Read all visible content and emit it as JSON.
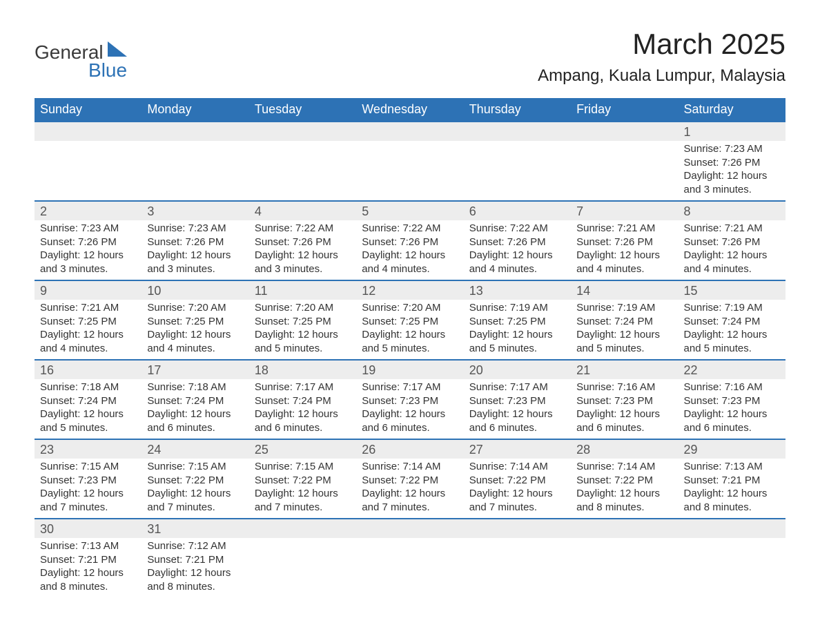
{
  "logo": {
    "line1": "General",
    "line2": "Blue",
    "tri_color": "#2d72b5"
  },
  "title": "March 2025",
  "location": "Ampang, Kuala Lumpur, Malaysia",
  "colors": {
    "header_bg": "#2d72b5",
    "header_fg": "#ffffff",
    "row_stripe": "#ededed",
    "border": "#2d72b5",
    "text": "#333333"
  },
  "day_headers": [
    "Sunday",
    "Monday",
    "Tuesday",
    "Wednesday",
    "Thursday",
    "Friday",
    "Saturday"
  ],
  "weeks": [
    [
      null,
      null,
      null,
      null,
      null,
      null,
      {
        "d": "1",
        "sunrise": "7:23 AM",
        "sunset": "7:26 PM",
        "daylight": "12 hours and 3 minutes."
      }
    ],
    [
      {
        "d": "2",
        "sunrise": "7:23 AM",
        "sunset": "7:26 PM",
        "daylight": "12 hours and 3 minutes."
      },
      {
        "d": "3",
        "sunrise": "7:23 AM",
        "sunset": "7:26 PM",
        "daylight": "12 hours and 3 minutes."
      },
      {
        "d": "4",
        "sunrise": "7:22 AM",
        "sunset": "7:26 PM",
        "daylight": "12 hours and 3 minutes."
      },
      {
        "d": "5",
        "sunrise": "7:22 AM",
        "sunset": "7:26 PM",
        "daylight": "12 hours and 4 minutes."
      },
      {
        "d": "6",
        "sunrise": "7:22 AM",
        "sunset": "7:26 PM",
        "daylight": "12 hours and 4 minutes."
      },
      {
        "d": "7",
        "sunrise": "7:21 AM",
        "sunset": "7:26 PM",
        "daylight": "12 hours and 4 minutes."
      },
      {
        "d": "8",
        "sunrise": "7:21 AM",
        "sunset": "7:26 PM",
        "daylight": "12 hours and 4 minutes."
      }
    ],
    [
      {
        "d": "9",
        "sunrise": "7:21 AM",
        "sunset": "7:25 PM",
        "daylight": "12 hours and 4 minutes."
      },
      {
        "d": "10",
        "sunrise": "7:20 AM",
        "sunset": "7:25 PM",
        "daylight": "12 hours and 4 minutes."
      },
      {
        "d": "11",
        "sunrise": "7:20 AM",
        "sunset": "7:25 PM",
        "daylight": "12 hours and 5 minutes."
      },
      {
        "d": "12",
        "sunrise": "7:20 AM",
        "sunset": "7:25 PM",
        "daylight": "12 hours and 5 minutes."
      },
      {
        "d": "13",
        "sunrise": "7:19 AM",
        "sunset": "7:25 PM",
        "daylight": "12 hours and 5 minutes."
      },
      {
        "d": "14",
        "sunrise": "7:19 AM",
        "sunset": "7:24 PM",
        "daylight": "12 hours and 5 minutes."
      },
      {
        "d": "15",
        "sunrise": "7:19 AM",
        "sunset": "7:24 PM",
        "daylight": "12 hours and 5 minutes."
      }
    ],
    [
      {
        "d": "16",
        "sunrise": "7:18 AM",
        "sunset": "7:24 PM",
        "daylight": "12 hours and 5 minutes."
      },
      {
        "d": "17",
        "sunrise": "7:18 AM",
        "sunset": "7:24 PM",
        "daylight": "12 hours and 6 minutes."
      },
      {
        "d": "18",
        "sunrise": "7:17 AM",
        "sunset": "7:24 PM",
        "daylight": "12 hours and 6 minutes."
      },
      {
        "d": "19",
        "sunrise": "7:17 AM",
        "sunset": "7:23 PM",
        "daylight": "12 hours and 6 minutes."
      },
      {
        "d": "20",
        "sunrise": "7:17 AM",
        "sunset": "7:23 PM",
        "daylight": "12 hours and 6 minutes."
      },
      {
        "d": "21",
        "sunrise": "7:16 AM",
        "sunset": "7:23 PM",
        "daylight": "12 hours and 6 minutes."
      },
      {
        "d": "22",
        "sunrise": "7:16 AM",
        "sunset": "7:23 PM",
        "daylight": "12 hours and 6 minutes."
      }
    ],
    [
      {
        "d": "23",
        "sunrise": "7:15 AM",
        "sunset": "7:23 PM",
        "daylight": "12 hours and 7 minutes."
      },
      {
        "d": "24",
        "sunrise": "7:15 AM",
        "sunset": "7:22 PM",
        "daylight": "12 hours and 7 minutes."
      },
      {
        "d": "25",
        "sunrise": "7:15 AM",
        "sunset": "7:22 PM",
        "daylight": "12 hours and 7 minutes."
      },
      {
        "d": "26",
        "sunrise": "7:14 AM",
        "sunset": "7:22 PM",
        "daylight": "12 hours and 7 minutes."
      },
      {
        "d": "27",
        "sunrise": "7:14 AM",
        "sunset": "7:22 PM",
        "daylight": "12 hours and 7 minutes."
      },
      {
        "d": "28",
        "sunrise": "7:14 AM",
        "sunset": "7:22 PM",
        "daylight": "12 hours and 8 minutes."
      },
      {
        "d": "29",
        "sunrise": "7:13 AM",
        "sunset": "7:21 PM",
        "daylight": "12 hours and 8 minutes."
      }
    ],
    [
      {
        "d": "30",
        "sunrise": "7:13 AM",
        "sunset": "7:21 PM",
        "daylight": "12 hours and 8 minutes."
      },
      {
        "d": "31",
        "sunrise": "7:12 AM",
        "sunset": "7:21 PM",
        "daylight": "12 hours and 8 minutes."
      },
      null,
      null,
      null,
      null,
      null
    ]
  ],
  "labels": {
    "sunrise": "Sunrise: ",
    "sunset": "Sunset: ",
    "daylight": "Daylight: "
  }
}
